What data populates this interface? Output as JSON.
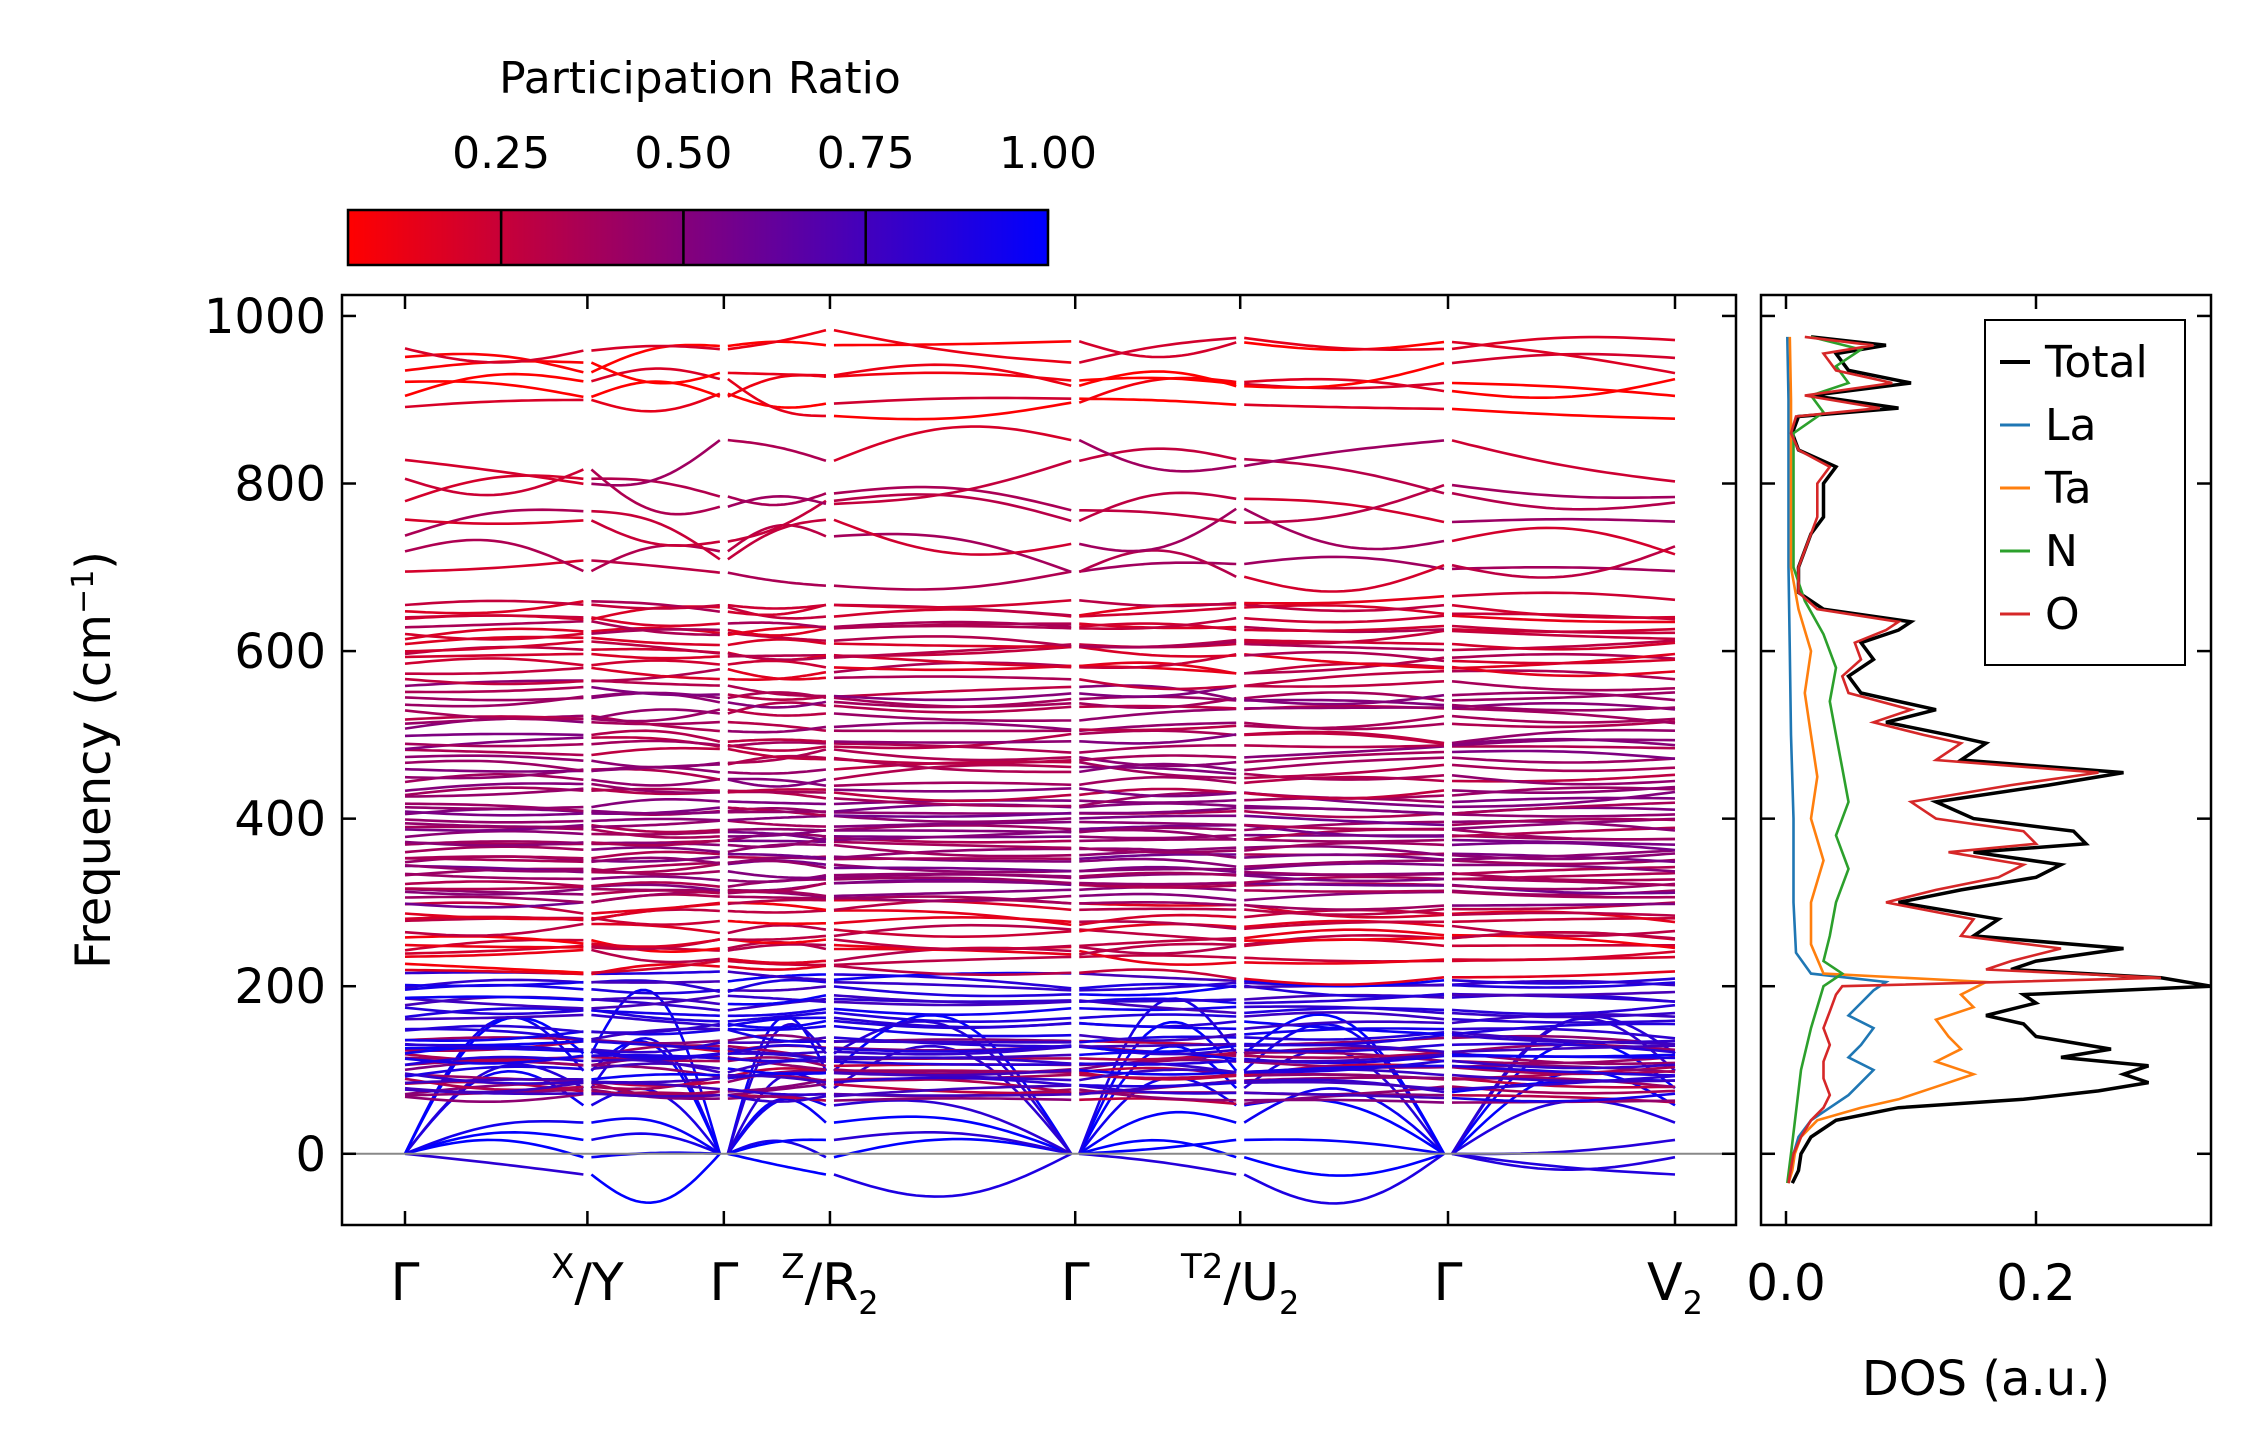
{
  "chart_data": [
    {
      "type": "line",
      "title": "",
      "xlabel": "",
      "ylabel": "Frequency (cm",
      "ylabel_sup": "−1",
      "ylabel_close": ")",
      "ylim": [
        -85,
        1025
      ],
      "yticks": [
        0,
        200,
        400,
        600,
        800,
        1000
      ],
      "ytick_labels": [
        "0",
        "200",
        "400",
        "600",
        "800",
        "1000"
      ],
      "path_labels": [
        {
          "base": "Γ"
        },
        {
          "sup": "X",
          "slash": "/",
          "base": "Y"
        },
        {
          "base": "Γ"
        },
        {
          "sup": "Z",
          "slash": "/",
          "base": "R",
          "sub": "2"
        },
        {
          "base": "Γ"
        },
        {
          "sup": "T2",
          "slash": "/",
          "base": "U",
          "sub": "2"
        },
        {
          "base": "Γ"
        },
        {
          "base": "V",
          "sub": "2"
        }
      ],
      "segments": [
        {
          "from": "Γ",
          "to": "X",
          "length": 1.0
        },
        {
          "from": "Y",
          "to": "Γ",
          "length": 0.72
        },
        {
          "from": "Γ",
          "to": "Z",
          "length": 0.55
        },
        {
          "from": "R2",
          "to": "Γ",
          "length": 1.33
        },
        {
          "from": "Γ",
          "to": "T2",
          "length": 0.88
        },
        {
          "from": "U2",
          "to": "Γ",
          "length": 1.12
        },
        {
          "from": "Γ",
          "to": "V2",
          "length": 1.25
        }
      ],
      "zero_line": 0,
      "colormap": {
        "low": "#ff0000",
        "high": "#0000ff"
      },
      "band_layers": [
        {
          "range": [
            -35,
            130
          ],
          "participation": 0.95,
          "count": 8,
          "acoustic": true
        },
        {
          "range": [
            60,
            135
          ],
          "participation": 0.4,
          "count": 12
        },
        {
          "range": [
            70,
            215
          ],
          "participation": 0.85,
          "count": 24
        },
        {
          "range": [
            215,
            300
          ],
          "participation": 0.2,
          "count": 12
        },
        {
          "range": [
            300,
            420
          ],
          "participation": 0.45,
          "count": 26
        },
        {
          "range": [
            420,
            560
          ],
          "participation": 0.4,
          "count": 20
        },
        {
          "range": [
            565,
            660
          ],
          "participation": 0.25,
          "count": 14
        },
        {
          "range": [
            680,
            840
          ],
          "participation": 0.3,
          "count": 7
        },
        {
          "range": [
            880,
            970
          ],
          "participation": 0.1,
          "count": 6
        }
      ]
    },
    {
      "type": "line",
      "title": "",
      "xlabel": "DOS (a.u.)",
      "ylabel": "",
      "xlim": [
        -0.02,
        0.34
      ],
      "xticks": [
        0.0,
        0.2
      ],
      "xtick_labels": [
        "0.0",
        "0.2"
      ],
      "ylim": [
        -85,
        1025
      ],
      "legend_position": "top-right",
      "series": [
        {
          "name": "Total",
          "color": "#000000",
          "points": [
            [
              -35,
              0.005
            ],
            [
              -20,
              0.01
            ],
            [
              0,
              0.012
            ],
            [
              20,
              0.02
            ],
            [
              40,
              0.04
            ],
            [
              55,
              0.09
            ],
            [
              65,
              0.19
            ],
            [
              75,
              0.25
            ],
            [
              85,
              0.29
            ],
            [
              95,
              0.27
            ],
            [
              105,
              0.29
            ],
            [
              115,
              0.22
            ],
            [
              125,
              0.26
            ],
            [
              140,
              0.2
            ],
            [
              155,
              0.19
            ],
            [
              165,
              0.16
            ],
            [
              180,
              0.2
            ],
            [
              190,
              0.19
            ],
            [
              200,
              0.34
            ],
            [
              210,
              0.3
            ],
            [
              220,
              0.18
            ],
            [
              230,
              0.2
            ],
            [
              245,
              0.27
            ],
            [
              260,
              0.15
            ],
            [
              280,
              0.17
            ],
            [
              300,
              0.09
            ],
            [
              315,
              0.14
            ],
            [
              330,
              0.2
            ],
            [
              345,
              0.22
            ],
            [
              360,
              0.15
            ],
            [
              370,
              0.24
            ],
            [
              385,
              0.23
            ],
            [
              400,
              0.15
            ],
            [
              420,
              0.12
            ],
            [
              440,
              0.21
            ],
            [
              455,
              0.27
            ],
            [
              470,
              0.14
            ],
            [
              490,
              0.16
            ],
            [
              500,
              0.13
            ],
            [
              515,
              0.08
            ],
            [
              530,
              0.12
            ],
            [
              550,
              0.06
            ],
            [
              570,
              0.05
            ],
            [
              590,
              0.07
            ],
            [
              610,
              0.06
            ],
            [
              625,
              0.09
            ],
            [
              635,
              0.1
            ],
            [
              650,
              0.03
            ],
            [
              670,
              0.01
            ],
            [
              700,
              0.01
            ],
            [
              740,
              0.02
            ],
            [
              760,
              0.03
            ],
            [
              780,
              0.03
            ],
            [
              800,
              0.03
            ],
            [
              820,
              0.04
            ],
            [
              840,
              0.01
            ],
            [
              860,
              0.005
            ],
            [
              880,
              0.01
            ],
            [
              890,
              0.09
            ],
            [
              905,
              0.02
            ],
            [
              920,
              0.1
            ],
            [
              935,
              0.05
            ],
            [
              955,
              0.04
            ],
            [
              965,
              0.08
            ],
            [
              975,
              0.02
            ]
          ]
        },
        {
          "name": "La",
          "color": "#1f77b4",
          "points": [
            [
              -35,
              0.002
            ],
            [
              -20,
              0.004
            ],
            [
              0,
              0.006
            ],
            [
              20,
              0.01
            ],
            [
              40,
              0.02
            ],
            [
              55,
              0.035
            ],
            [
              70,
              0.05
            ],
            [
              85,
              0.06
            ],
            [
              100,
              0.07
            ],
            [
              115,
              0.05
            ],
            [
              130,
              0.06
            ],
            [
              150,
              0.07
            ],
            [
              165,
              0.05
            ],
            [
              180,
              0.06
            ],
            [
              195,
              0.07
            ],
            [
              205,
              0.08
            ],
            [
              215,
              0.02
            ],
            [
              240,
              0.008
            ],
            [
              300,
              0.006
            ],
            [
              400,
              0.006
            ],
            [
              500,
              0.004
            ],
            [
              600,
              0.003
            ],
            [
              700,
              0.002
            ],
            [
              800,
              0.002
            ],
            [
              900,
              0.002
            ],
            [
              975,
              0.001
            ]
          ]
        },
        {
          "name": "Ta",
          "color": "#ff7f0e",
          "points": [
            [
              -35,
              0.002
            ],
            [
              -20,
              0.005
            ],
            [
              0,
              0.007
            ],
            [
              20,
              0.012
            ],
            [
              40,
              0.025
            ],
            [
              55,
              0.06
            ],
            [
              65,
              0.09
            ],
            [
              80,
              0.12
            ],
            [
              95,
              0.15
            ],
            [
              110,
              0.12
            ],
            [
              125,
              0.14
            ],
            [
              140,
              0.13
            ],
            [
              160,
              0.12
            ],
            [
              175,
              0.15
            ],
            [
              190,
              0.14
            ],
            [
              205,
              0.16
            ],
            [
              215,
              0.03
            ],
            [
              250,
              0.02
            ],
            [
              300,
              0.02
            ],
            [
              350,
              0.03
            ],
            [
              400,
              0.02
            ],
            [
              450,
              0.025
            ],
            [
              500,
              0.02
            ],
            [
              550,
              0.015
            ],
            [
              600,
              0.02
            ],
            [
              650,
              0.01
            ],
            [
              700,
              0.004
            ],
            [
              800,
              0.004
            ],
            [
              900,
              0.004
            ],
            [
              975,
              0.003
            ]
          ]
        },
        {
          "name": "N",
          "color": "#2ca02c",
          "points": [
            [
              -35,
              0.001
            ],
            [
              0,
              0.004
            ],
            [
              50,
              0.008
            ],
            [
              100,
              0.012
            ],
            [
              150,
              0.02
            ],
            [
              200,
              0.03
            ],
            [
              215,
              0.045
            ],
            [
              230,
              0.03
            ],
            [
              260,
              0.035
            ],
            [
              300,
              0.04
            ],
            [
              340,
              0.05
            ],
            [
              380,
              0.04
            ],
            [
              420,
              0.05
            ],
            [
              460,
              0.045
            ],
            [
              500,
              0.04
            ],
            [
              540,
              0.035
            ],
            [
              580,
              0.04
            ],
            [
              620,
              0.03
            ],
            [
              660,
              0.015
            ],
            [
              700,
              0.006
            ],
            [
              760,
              0.006
            ],
            [
              820,
              0.006
            ],
            [
              860,
              0.006
            ],
            [
              885,
              0.03
            ],
            [
              905,
              0.02
            ],
            [
              920,
              0.05
            ],
            [
              940,
              0.04
            ],
            [
              960,
              0.06
            ],
            [
              975,
              0.02
            ]
          ]
        },
        {
          "name": "O",
          "color": "#d62728",
          "points": [
            [
              -35,
              0.002
            ],
            [
              0,
              0.006
            ],
            [
              20,
              0.012
            ],
            [
              40,
              0.02
            ],
            [
              55,
              0.03
            ],
            [
              70,
              0.035
            ],
            [
              90,
              0.03
            ],
            [
              110,
              0.03
            ],
            [
              130,
              0.035
            ],
            [
              150,
              0.03
            ],
            [
              170,
              0.035
            ],
            [
              190,
              0.04
            ],
            [
              200,
              0.045
            ],
            [
              210,
              0.3
            ],
            [
              220,
              0.16
            ],
            [
              230,
              0.18
            ],
            [
              245,
              0.22
            ],
            [
              260,
              0.14
            ],
            [
              280,
              0.15
            ],
            [
              300,
              0.08
            ],
            [
              315,
              0.12
            ],
            [
              330,
              0.17
            ],
            [
              345,
              0.19
            ],
            [
              360,
              0.13
            ],
            [
              370,
              0.2
            ],
            [
              385,
              0.19
            ],
            [
              400,
              0.12
            ],
            [
              420,
              0.1
            ],
            [
              440,
              0.18
            ],
            [
              455,
              0.25
            ],
            [
              470,
              0.12
            ],
            [
              490,
              0.14
            ],
            [
              500,
              0.11
            ],
            [
              515,
              0.07
            ],
            [
              530,
              0.1
            ],
            [
              550,
              0.05
            ],
            [
              570,
              0.045
            ],
            [
              590,
              0.06
            ],
            [
              610,
              0.055
            ],
            [
              625,
              0.08
            ],
            [
              635,
              0.09
            ],
            [
              650,
              0.025
            ],
            [
              670,
              0.01
            ],
            [
              700,
              0.01
            ],
            [
              740,
              0.02
            ],
            [
              760,
              0.025
            ],
            [
              780,
              0.025
            ],
            [
              800,
              0.025
            ],
            [
              820,
              0.035
            ],
            [
              840,
              0.01
            ],
            [
              860,
              0.004
            ],
            [
              880,
              0.008
            ],
            [
              890,
              0.075
            ],
            [
              905,
              0.015
            ],
            [
              920,
              0.085
            ],
            [
              935,
              0.04
            ],
            [
              955,
              0.03
            ],
            [
              965,
              0.07
            ],
            [
              975,
              0.015
            ]
          ]
        }
      ]
    }
  ],
  "colorbar": {
    "label": "Participation Ratio",
    "ticks": [
      0.25,
      0.5,
      0.75,
      1.0
    ],
    "tick_labels": [
      "0.25",
      "0.50",
      "0.75",
      "1.00"
    ],
    "range": [
      0.04,
      1.0
    ],
    "color_low": "#ff0000",
    "color_high": "#0000ff"
  }
}
